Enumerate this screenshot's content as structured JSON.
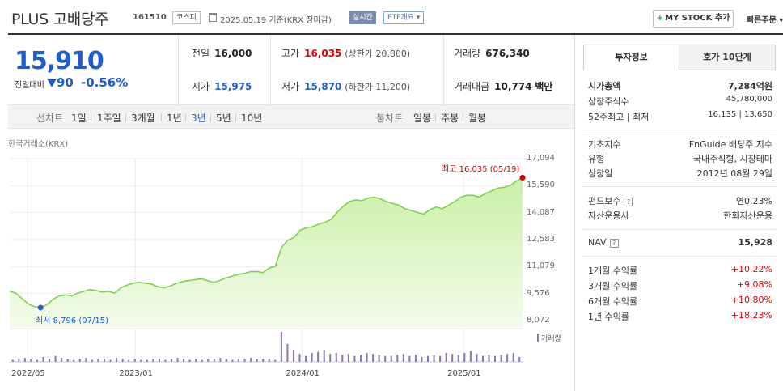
{
  "header": {
    "title": "PLUS 고배당주",
    "code": "161510",
    "market_badge": "코스피",
    "date": "2025.05.19  기준(KRX 장마감)",
    "realtime_badge": "실시간",
    "etf_badge": "ETF개요 ▾",
    "mystock_plus": "+",
    "mystock_label": "MY STOCK 추가",
    "quick_order": "빠른주문 ▾"
  },
  "price": {
    "current": "15,910",
    "change_label": "전일대비",
    "change_value": "90",
    "change_pct": "-0.56%"
  },
  "stats": {
    "prev_close_label": "전일",
    "prev_close": "16,000",
    "high_label": "고가",
    "high": "16,035",
    "upper_limit": "(상한가 20,800)",
    "volume_label": "거래량",
    "volume": "676,340",
    "open_label": "시가",
    "open": "15,975",
    "low_label": "저가",
    "low": "15,870",
    "lower_limit": "(하한가 11,200)",
    "amount_label": "거래대금",
    "amount": "10,774",
    "amount_unit": "백만"
  },
  "period_bar": {
    "line_label": "선차트",
    "periods": [
      "1일",
      "1주일",
      "3개월",
      "1년",
      "3년",
      "5년",
      "10년"
    ],
    "active_period": "3년",
    "candle_label": "봉차트",
    "candle_periods": [
      "일봉",
      "주봉",
      "월봉"
    ]
  },
  "chart_data": {
    "type": "area",
    "source_label": "한국거래소(KRX)",
    "yticks": [
      "17,094",
      "15,590",
      "14,087",
      "12,583",
      "11,079",
      "9,576",
      "8,072"
    ],
    "ylim": [
      8072,
      17094
    ],
    "xticks": [
      "2022/05",
      "2023/01",
      "2024/01",
      "2025/01"
    ],
    "high_note": "최고 16,035 (05/19)",
    "low_note": "최저 8,796 (07/15)",
    "volume_label": "거래량",
    "line_color": "#7ccf4a",
    "fill_color": "#c9f0a6",
    "high_color": "#dd0000",
    "low_color": "#1f5cd0",
    "volume_color": "#8a74b4",
    "series": {
      "values": [
        9700,
        9600,
        9300,
        9000,
        8850,
        8796,
        8950,
        9250,
        9450,
        9500,
        9450,
        9600,
        9700,
        9800,
        9750,
        9650,
        9700,
        9600,
        9900,
        10050,
        10150,
        10200,
        10150,
        10100,
        9950,
        9900,
        10000,
        10150,
        10250,
        10300,
        10350,
        10400,
        10300,
        10200,
        10300,
        10450,
        10550,
        10650,
        10700,
        10800,
        10800,
        10750,
        11000,
        11100,
        12150,
        12550,
        12700,
        13100,
        13250,
        13300,
        13450,
        13550,
        13700,
        14100,
        14450,
        14700,
        14800,
        14750,
        14900,
        14950,
        14850,
        14700,
        14600,
        14500,
        14300,
        14200,
        14100,
        14000,
        14250,
        14400,
        14300,
        14500,
        14700,
        14950,
        15050,
        15050,
        14950,
        15150,
        15300,
        15450,
        15500,
        15600,
        15850,
        16035
      ],
      "volume": [
        2,
        3,
        4,
        3,
        2,
        5,
        3,
        6,
        4,
        3,
        2,
        3,
        4,
        2,
        3,
        3,
        2,
        4,
        3,
        2,
        3,
        2,
        2,
        3,
        3,
        2,
        3,
        4,
        3,
        2,
        3,
        2,
        3,
        3,
        4,
        3,
        2,
        3,
        3,
        4,
        3,
        3,
        3,
        2,
        30,
        18,
        12,
        8,
        6,
        9,
        10,
        12,
        8,
        9,
        7,
        8,
        6,
        7,
        9,
        8,
        7,
        6,
        6,
        7,
        8,
        6,
        7,
        5,
        6,
        7,
        6,
        9,
        8,
        7,
        9,
        11,
        8,
        6,
        7,
        6,
        7,
        8,
        9,
        5
      ]
    }
  },
  "right_panel": {
    "tabs": [
      "투자정보",
      "호가 10단계"
    ],
    "market_cap_label": "시가총액",
    "market_cap": "7,284억원",
    "shares_label": "상장주식수",
    "shares": "45,780,000",
    "wk52_label": "52주최고 | 최저",
    "wk52": "16,135 | 13,650",
    "index_label": "기초지수",
    "index": "FnGuide 배당주 지수",
    "type_label": "유형",
    "type": "국내주식형, 시장테마",
    "listing_label": "상장일",
    "listing": "2012년 08월 29일",
    "fee_label": "펀드보수",
    "fee": "연0.23%",
    "manager_label": "자산운용사",
    "manager": "한화자산운용",
    "nav_label": "NAV",
    "nav": "15,928",
    "help_glyph": "?",
    "returns": [
      {
        "label": "1개월 수익률",
        "value": "+10.22%"
      },
      {
        "label": "3개월 수익률",
        "value": "+9.08%"
      },
      {
        "label": "6개월 수익률",
        "value": "+10.80%"
      },
      {
        "label": "1년 수익률",
        "value": "+18.23%"
      }
    ]
  }
}
